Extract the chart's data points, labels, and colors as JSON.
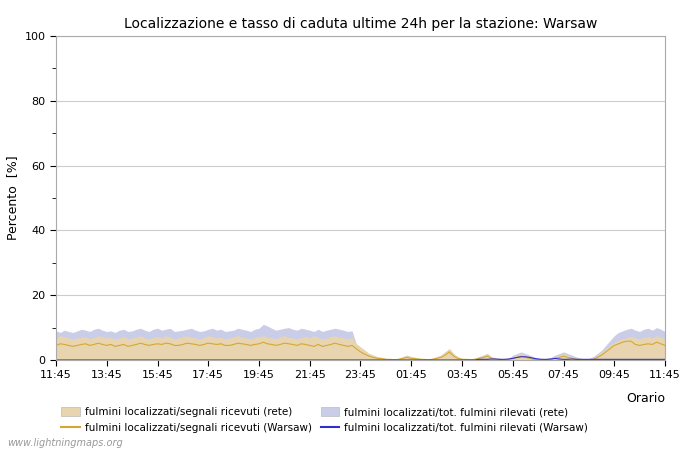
{
  "title": "Localizzazione e tasso di caduta ultime 24h per la stazione: Warsaw",
  "ylabel": "Percento  [%]",
  "xlabel": "Orario",
  "ylim": [
    0,
    100
  ],
  "yticks": [
    0,
    20,
    40,
    60,
    80,
    100
  ],
  "yticks_minor": [
    10,
    30,
    50,
    70,
    90
  ],
  "x_labels": [
    "11:45",
    "13:45",
    "15:45",
    "17:45",
    "19:45",
    "21:45",
    "23:45",
    "01:45",
    "03:45",
    "05:45",
    "07:45",
    "09:45",
    "11:45"
  ],
  "watermark": "www.lightningmaps.org",
  "fill_rete_color": "#e8d5b0",
  "fill_warsaw_color": "#cacde8",
  "line_rete_color": "#d4a830",
  "line_warsaw_color": "#3030cc",
  "background_color": "#ffffff",
  "grid_color": "#cccccc",
  "n_points": 145,
  "rete_fill": [
    6.5,
    7.5,
    7.2,
    6.8,
    6.5,
    6.8,
    7.0,
    7.2,
    6.5,
    7.0,
    7.5,
    7.2,
    6.8,
    7.0,
    6.5,
    6.8,
    7.2,
    6.5,
    6.8,
    7.0,
    7.5,
    6.8,
    6.5,
    7.0,
    7.2,
    6.8,
    7.5,
    7.0,
    6.5,
    6.8,
    7.2,
    7.5,
    7.0,
    6.8,
    6.5,
    7.0,
    7.5,
    7.2,
    6.8,
    7.0,
    6.5,
    6.8,
    7.2,
    7.5,
    7.0,
    6.8,
    6.5,
    7.0,
    7.2,
    7.5,
    7.0,
    6.8,
    6.5,
    7.2,
    7.5,
    7.0,
    6.8,
    6.5,
    7.0,
    7.2,
    6.8,
    7.5,
    7.0,
    6.5,
    6.8,
    7.2,
    7.5,
    7.0,
    6.8,
    6.5,
    7.0,
    5.0,
    4.0,
    3.0,
    2.0,
    1.5,
    1.0,
    0.8,
    0.5,
    0.3,
    0.2,
    0.5,
    1.0,
    1.5,
    1.0,
    0.8,
    0.5,
    0.3,
    0.2,
    0.5,
    1.0,
    1.5,
    2.5,
    3.5,
    2.0,
    1.0,
    0.5,
    0.3,
    0.2,
    0.5,
    1.0,
    1.5,
    2.0,
    1.0,
    0.5,
    0.3,
    0.2,
    0.5,
    1.0,
    1.5,
    2.0,
    1.5,
    1.0,
    0.5,
    0.3,
    0.2,
    0.3,
    0.5,
    1.0,
    1.5,
    2.0,
    1.5,
    1.0,
    0.5,
    0.3,
    0.2,
    0.3,
    0.5,
    1.5,
    2.5,
    3.5,
    4.5,
    5.5,
    6.0,
    6.5,
    7.0,
    7.2,
    6.8,
    6.5,
    7.0,
    7.2,
    6.8,
    7.5,
    7.0,
    6.5
  ],
  "warsaw_fill": [
    9.0,
    8.5,
    9.2,
    8.8,
    8.5,
    9.0,
    9.5,
    9.2,
    8.8,
    9.5,
    9.8,
    9.2,
    8.8,
    9.0,
    8.5,
    9.2,
    9.5,
    8.8,
    9.0,
    9.5,
    9.8,
    9.2,
    8.8,
    9.5,
    9.8,
    9.2,
    9.5,
    9.8,
    8.8,
    9.0,
    9.2,
    9.5,
    9.8,
    9.2,
    8.8,
    9.0,
    9.5,
    9.8,
    9.2,
    9.5,
    8.8,
    9.0,
    9.2,
    9.8,
    9.5,
    9.2,
    8.8,
    9.5,
    9.8,
    11.0,
    10.5,
    9.8,
    9.2,
    9.5,
    9.8,
    10.0,
    9.5,
    9.2,
    9.8,
    9.5,
    9.2,
    8.8,
    9.5,
    8.8,
    9.2,
    9.5,
    9.8,
    9.5,
    9.2,
    8.8,
    9.0,
    5.0,
    4.0,
    3.0,
    2.0,
    1.5,
    1.0,
    0.8,
    0.5,
    0.3,
    0.2,
    0.5,
    1.0,
    1.5,
    1.0,
    0.8,
    0.5,
    0.3,
    0.2,
    0.5,
    1.0,
    1.5,
    2.5,
    3.5,
    2.0,
    1.0,
    0.5,
    0.3,
    0.2,
    0.5,
    1.0,
    1.5,
    2.0,
    1.0,
    0.5,
    0.3,
    0.2,
    0.5,
    1.5,
    2.0,
    2.5,
    2.0,
    1.5,
    1.0,
    0.5,
    0.3,
    0.5,
    0.8,
    1.5,
    2.0,
    2.5,
    2.0,
    1.5,
    1.0,
    0.5,
    0.3,
    0.5,
    1.0,
    2.0,
    3.0,
    4.5,
    6.0,
    7.5,
    8.5,
    9.0,
    9.5,
    9.8,
    9.2,
    8.8,
    9.5,
    9.8,
    9.2,
    10.0,
    9.5,
    8.8
  ],
  "warsaw_line": [
    0.0,
    0.0,
    0.0,
    0.0,
    0.0,
    0.0,
    0.0,
    0.0,
    0.0,
    0.0,
    0.0,
    0.0,
    0.0,
    0.0,
    0.0,
    0.0,
    0.0,
    0.0,
    0.0,
    0.0,
    0.0,
    0.0,
    0.0,
    0.0,
    0.0,
    0.0,
    0.0,
    0.0,
    0.0,
    0.0,
    0.0,
    0.0,
    0.0,
    0.0,
    0.0,
    0.0,
    0.0,
    0.0,
    0.0,
    0.0,
    0.0,
    0.0,
    0.0,
    0.0,
    0.0,
    0.0,
    0.0,
    0.0,
    0.0,
    0.0,
    0.0,
    0.0,
    0.0,
    0.0,
    0.0,
    0.0,
    0.0,
    0.0,
    0.0,
    0.0,
    0.0,
    0.0,
    0.0,
    0.0,
    0.0,
    0.0,
    0.0,
    0.0,
    0.0,
    0.0,
    0.0,
    0.0,
    0.0,
    0.0,
    0.0,
    0.0,
    0.0,
    0.0,
    0.0,
    0.0,
    0.0,
    0.0,
    0.0,
    0.0,
    0.0,
    0.0,
    0.0,
    0.0,
    0.0,
    0.0,
    0.0,
    0.0,
    0.0,
    0.0,
    0.0,
    0.0,
    0.0,
    0.0,
    0.0,
    0.0,
    0.2,
    0.2,
    0.2,
    0.3,
    0.3,
    0.2,
    0.2,
    0.3,
    0.5,
    0.8,
    1.0,
    1.0,
    0.8,
    0.5,
    0.3,
    0.2,
    0.2,
    0.3,
    0.5,
    0.3,
    0.2,
    0.2,
    0.3,
    0.2,
    0.2,
    0.2,
    0.2,
    0.2,
    0.2,
    0.2,
    0.2,
    0.2,
    0.2,
    0.2,
    0.2,
    0.2,
    0.2,
    0.2,
    0.2,
    0.2,
    0.2,
    0.2,
    0.2,
    0.2,
    0.2
  ],
  "rete_line": [
    4.5,
    5.0,
    4.8,
    4.5,
    4.2,
    4.5,
    4.8,
    5.0,
    4.5,
    4.8,
    5.2,
    4.8,
    4.5,
    4.8,
    4.2,
    4.5,
    4.8,
    4.2,
    4.5,
    4.8,
    5.2,
    4.8,
    4.5,
    4.8,
    5.0,
    4.8,
    5.2,
    5.0,
    4.5,
    4.5,
    4.8,
    5.2,
    5.0,
    4.8,
    4.5,
    4.8,
    5.2,
    5.0,
    4.8,
    5.0,
    4.5,
    4.5,
    4.8,
    5.2,
    5.0,
    4.8,
    4.5,
    4.8,
    5.0,
    5.5,
    5.0,
    4.8,
    4.5,
    4.8,
    5.2,
    5.0,
    4.8,
    4.5,
    5.0,
    4.8,
    4.5,
    4.2,
    4.8,
    4.2,
    4.5,
    4.8,
    5.2,
    4.8,
    4.5,
    4.2,
    4.5,
    3.5,
    2.5,
    1.8,
    1.2,
    0.8,
    0.5,
    0.4,
    0.2,
    0.2,
    0.1,
    0.2,
    0.5,
    0.8,
    0.5,
    0.4,
    0.2,
    0.2,
    0.1,
    0.2,
    0.5,
    0.8,
    1.5,
    2.5,
    1.2,
    0.5,
    0.2,
    0.2,
    0.1,
    0.2,
    0.5,
    0.8,
    1.2,
    0.5,
    0.2,
    0.2,
    0.1,
    0.2,
    0.5,
    0.8,
    1.2,
    0.8,
    0.5,
    0.2,
    0.2,
    0.1,
    0.1,
    0.2,
    0.5,
    0.8,
    1.2,
    0.8,
    0.5,
    0.2,
    0.2,
    0.1,
    0.1,
    0.2,
    0.8,
    1.5,
    2.5,
    3.5,
    4.5,
    5.0,
    5.5,
    5.8,
    5.8,
    4.8,
    4.5,
    4.8,
    5.0,
    4.8,
    5.5,
    5.0,
    4.5
  ]
}
